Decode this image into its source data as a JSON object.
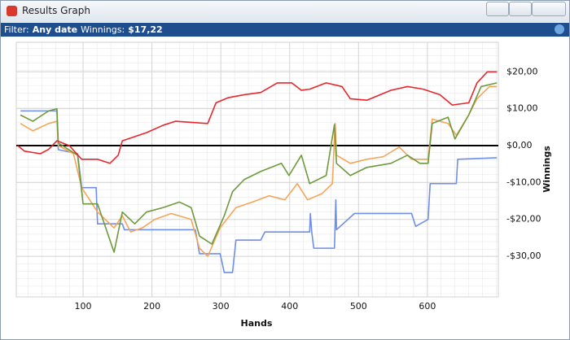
{
  "window": {
    "title": "Results Graph"
  },
  "filter": {
    "label": "Filter:",
    "date": "Any date",
    "winnings_label": "Winnings:",
    "winnings": "$17,22"
  },
  "chart_data": {
    "type": "line",
    "x_label": "Hands",
    "y_label": "Winnings",
    "xlim": [
      3,
      703
    ],
    "ylim": [
      -41,
      28
    ],
    "xticks": [
      100,
      200,
      300,
      400,
      500,
      600
    ],
    "yticks": [
      {
        "value": 20,
        "label": "$20,00"
      },
      {
        "value": 10,
        "label": "$10,00"
      },
      {
        "value": 0,
        "label": "$0,00"
      },
      {
        "value": -10,
        "label": "-$10,00"
      },
      {
        "value": -20,
        "label": "-$20,00"
      },
      {
        "value": -30,
        "label": "-$30,00"
      }
    ],
    "grid": true,
    "zero_line": true,
    "series": [
      {
        "color": "#6f8fe8",
        "x": [
          9,
          62,
          64,
          92,
          98,
          119,
          121,
          157,
          160,
          263,
          269,
          299,
          305,
          317,
          322,
          358,
          364,
          429,
          430,
          432,
          435,
          465,
          467,
          468,
          494,
          577,
          583,
          601,
          604,
          642,
          644,
          701
        ],
        "values": [
          9.4,
          9.4,
          -1.1,
          -2.2,
          -11.4,
          -11.4,
          -21.2,
          -21.2,
          -22.8,
          -22.8,
          -29.3,
          -29.3,
          -34.4,
          -34.4,
          -25.6,
          -25.6,
          -23.4,
          -23.4,
          -18.4,
          -23.4,
          -27.8,
          -27.8,
          -14.7,
          -22.8,
          -18.4,
          -18.4,
          -21.9,
          -20,
          -10.3,
          -10.3,
          -3.7,
          -3.3
        ]
      },
      {
        "color": "#f5a55a",
        "x": [
          9,
          27,
          50,
          62,
          64,
          86,
          98,
          121,
          145,
          157,
          169,
          186,
          204,
          228,
          257,
          269,
          281,
          299,
          322,
          346,
          370,
          393,
          411,
          426,
          447,
          462,
          466,
          468,
          488,
          512,
          536,
          559,
          577,
          601,
          607,
          630,
          642,
          660,
          672,
          690,
          701
        ],
        "values": [
          6,
          4,
          6,
          6.6,
          0,
          -2.2,
          -11.4,
          -18,
          -22.3,
          -19,
          -23.4,
          -22.3,
          -20,
          -18.4,
          -20,
          -27.8,
          -30,
          -22.3,
          -16.8,
          -15.3,
          -13.6,
          -14.7,
          -10.3,
          -14.7,
          -13,
          -10.3,
          6,
          -2.6,
          -4.8,
          -3.7,
          -3,
          -0.4,
          -3.7,
          -3.7,
          7.2,
          6,
          2.8,
          8.3,
          12.7,
          16,
          16
        ]
      },
      {
        "color": "#6d9a3c",
        "x": [
          9,
          27,
          50,
          62,
          64,
          92,
          100,
          121,
          145,
          157,
          175,
          192,
          216,
          240,
          257,
          269,
          287,
          305,
          317,
          334,
          358,
          388,
          399,
          417,
          429,
          453,
          465,
          468,
          488,
          512,
          547,
          571,
          589,
          601,
          607,
          630,
          640,
          660,
          678,
          701
        ],
        "values": [
          8.3,
          6.6,
          9.4,
          10,
          0.7,
          -2.6,
          -15.8,
          -15.8,
          -28.9,
          -18,
          -21.2,
          -18,
          -16.8,
          -15.3,
          -16.8,
          -24.5,
          -26.7,
          -19,
          -12.5,
          -9.2,
          -7,
          -4.8,
          -8.1,
          -2.6,
          -10.3,
          -8.1,
          5.7,
          -4.8,
          -8.1,
          -5.9,
          -4.8,
          -2.6,
          -4.8,
          -4.8,
          6,
          7.7,
          1.8,
          8.3,
          16,
          17
        ]
      },
      {
        "color": "#e8262d",
        "x": [
          5,
          15,
          38,
          50,
          62,
          80,
          98,
          121,
          139,
          151,
          157,
          192,
          216,
          234,
          281,
          293,
          311,
          334,
          358,
          382,
          403,
          417,
          429,
          453,
          476,
          488,
          512,
          547,
          571,
          594,
          618,
          636,
          660,
          672,
          687,
          701
        ],
        "values": [
          0,
          -1.5,
          -2.2,
          -1,
          1.3,
          0,
          -3.7,
          -3.7,
          -4.8,
          -2.6,
          1.3,
          3.5,
          5.5,
          6.6,
          6,
          11.6,
          13,
          13.8,
          14.4,
          17,
          17,
          15,
          15.3,
          17,
          16,
          12.7,
          12.3,
          15,
          16,
          15.3,
          13.8,
          11,
          11.6,
          17,
          20,
          20
        ]
      }
    ]
  }
}
